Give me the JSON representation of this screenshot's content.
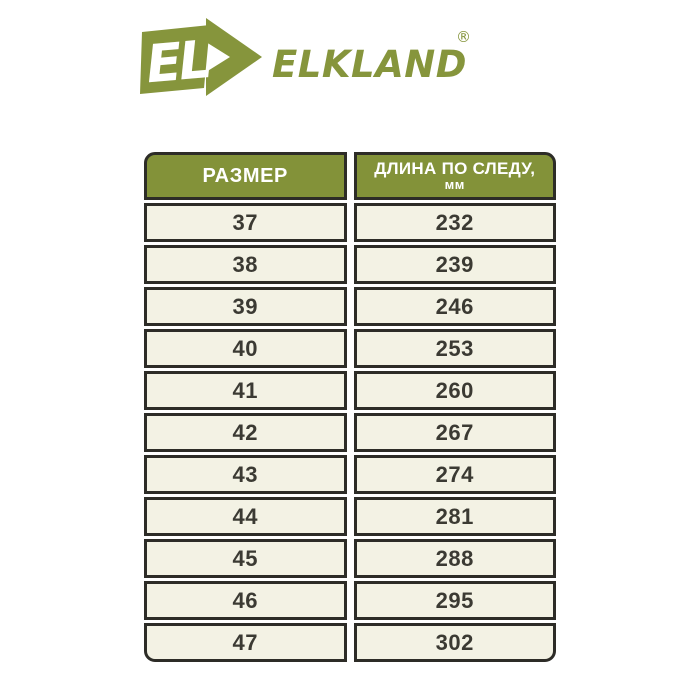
{
  "logo": {
    "emblem_text": "EL",
    "brand": "ELKLAND",
    "registered_mark": "®"
  },
  "table": {
    "headers": [
      {
        "title": "РАЗМЕР",
        "subtitle": ""
      },
      {
        "title": "ДЛИНА ПО СЛЕДУ,",
        "subtitle": "мм"
      }
    ],
    "rows": [
      [
        "37",
        "232"
      ],
      [
        "38",
        "239"
      ],
      [
        "39",
        "246"
      ],
      [
        "40",
        "253"
      ],
      [
        "41",
        "260"
      ],
      [
        "42",
        "267"
      ],
      [
        "43",
        "274"
      ],
      [
        "44",
        "281"
      ],
      [
        "45",
        "288"
      ],
      [
        "46",
        "295"
      ],
      [
        "47",
        "302"
      ]
    ]
  },
  "colors": {
    "brand_green": "#86953c",
    "header_green": "#839239",
    "cell_cream": "#f3f2e4",
    "cell_border": "#2d2c27",
    "number_text": "#3b3a33",
    "page_background": "#ffffff"
  },
  "chart_data": {
    "type": "table",
    "title": "ELKLAND размерная сетка",
    "columns": [
      "РАЗМЕР",
      "ДЛИНА ПО СЛЕДУ, мм"
    ],
    "rows": [
      [
        37,
        232
      ],
      [
        38,
        239
      ],
      [
        39,
        246
      ],
      [
        40,
        253
      ],
      [
        41,
        260
      ],
      [
        42,
        267
      ],
      [
        43,
        274
      ],
      [
        44,
        281
      ],
      [
        45,
        288
      ],
      [
        46,
        295
      ],
      [
        47,
        302
      ]
    ]
  }
}
